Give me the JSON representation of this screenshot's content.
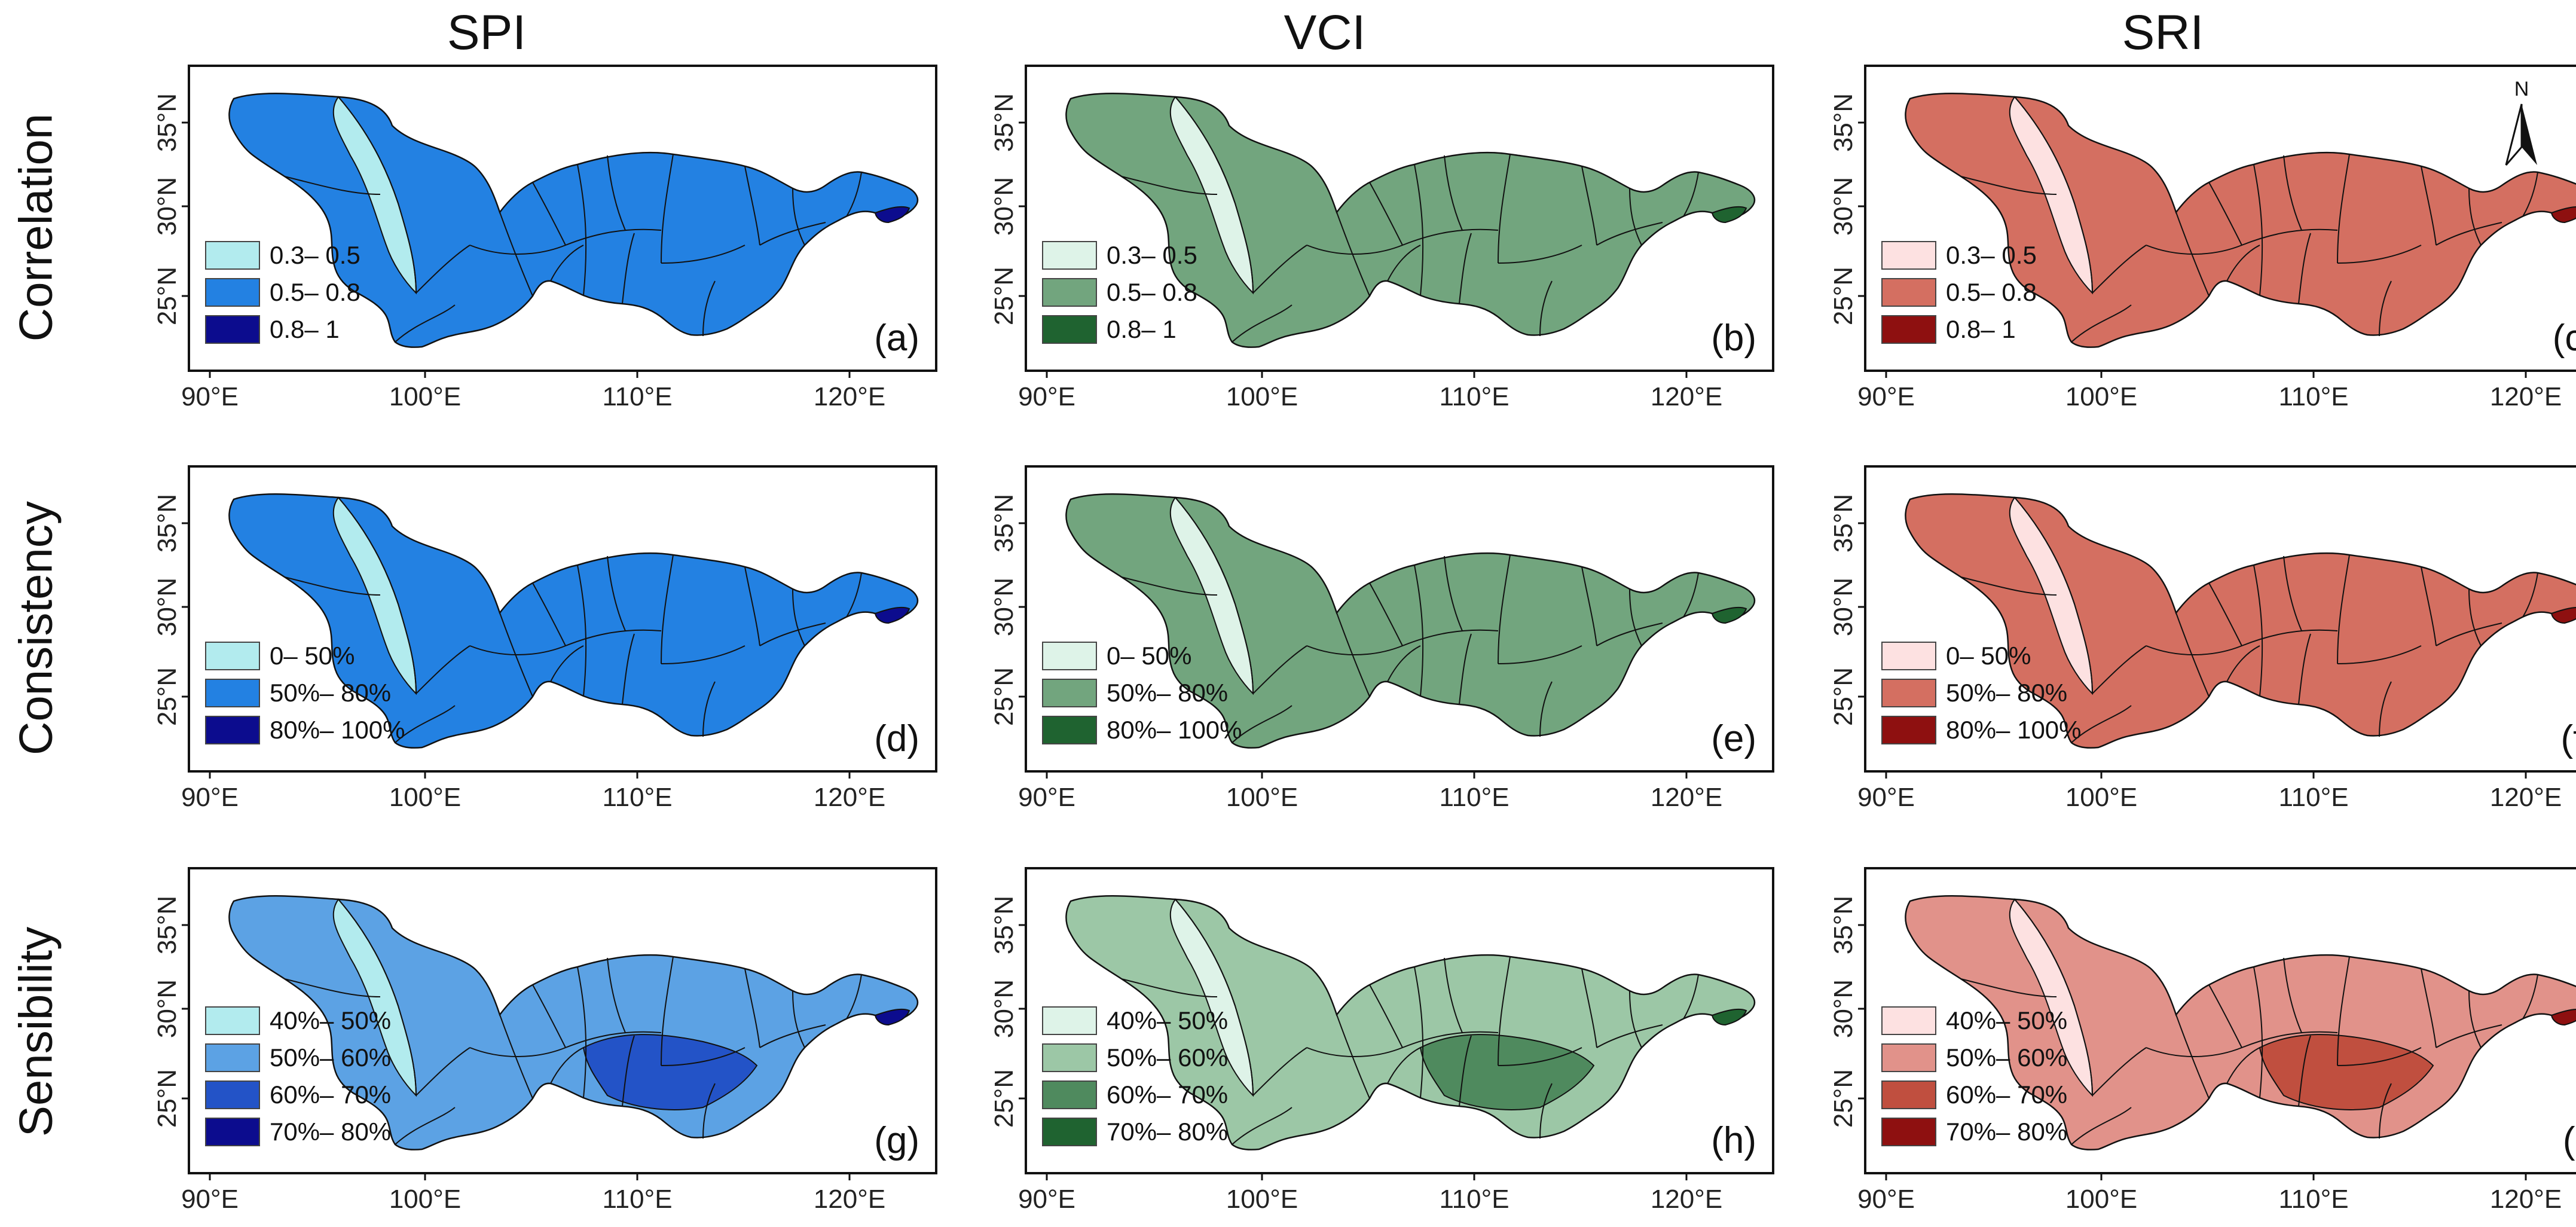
{
  "columns": [
    {
      "title": "SPI"
    },
    {
      "title": "VCI"
    },
    {
      "title": "SRI"
    }
  ],
  "rows": [
    {
      "title": "Correlation"
    },
    {
      "title": "Consistency"
    },
    {
      "title": "Sensibility"
    }
  ],
  "axes": {
    "lon_ticks": [
      "90°E",
      "100°E",
      "110°E",
      "120°E"
    ],
    "lat_ticks": [
      "35°N",
      "30°N",
      "25°N"
    ]
  },
  "north_arrow": {
    "label": "N"
  },
  "panels": [
    {
      "letter": "(a)",
      "legend": [
        {
          "label": "0.3– 0.5",
          "color": "#b2ebee"
        },
        {
          "label": "0.5– 0.8",
          "color": "#2381e2"
        },
        {
          "label": "0.8– 1",
          "color": "#0c0c8e"
        }
      ]
    },
    {
      "letter": "(b)",
      "legend": [
        {
          "label": "0.3– 0.5",
          "color": "#def3e8"
        },
        {
          "label": "0.5– 0.8",
          "color": "#72a57e"
        },
        {
          "label": "0.8– 1",
          "color": "#1f6330"
        }
      ]
    },
    {
      "letter": "(c)",
      "legend": [
        {
          "label": "0.3– 0.5",
          "color": "#fde1e1"
        },
        {
          "label": "0.5– 0.8",
          "color": "#d46f61"
        },
        {
          "label": "0.8– 1",
          "color": "#8e1010"
        }
      ]
    },
    {
      "letter": "(d)",
      "legend": [
        {
          "label": "0– 50%",
          "color": "#b2ebee"
        },
        {
          "label": "50%– 80%",
          "color": "#2381e2"
        },
        {
          "label": "80%– 100%",
          "color": "#0c0c8e"
        }
      ]
    },
    {
      "letter": "(e)",
      "legend": [
        {
          "label": "0– 50%",
          "color": "#def3e8"
        },
        {
          "label": "50%– 80%",
          "color": "#72a57e"
        },
        {
          "label": "80%– 100%",
          "color": "#1f6330"
        }
      ]
    },
    {
      "letter": "(f)",
      "legend": [
        {
          "label": "0– 50%",
          "color": "#fde1e1"
        },
        {
          "label": "50%– 80%",
          "color": "#d46f61"
        },
        {
          "label": "80%– 100%",
          "color": "#8e1010"
        }
      ]
    },
    {
      "letter": "(g)",
      "legend": [
        {
          "label": "40%– 50%",
          "color": "#b2ebee"
        },
        {
          "label": "50%– 60%",
          "color": "#5ca2e4"
        },
        {
          "label": "60%– 70%",
          "color": "#2353c7"
        },
        {
          "label": "70%– 80%",
          "color": "#0c0c8e"
        }
      ]
    },
    {
      "letter": "(h)",
      "legend": [
        {
          "label": "40%– 50%",
          "color": "#def3e8"
        },
        {
          "label": "50%– 60%",
          "color": "#9cc7a6"
        },
        {
          "label": "60%– 70%",
          "color": "#4f8a5e"
        },
        {
          "label": "70%– 80%",
          "color": "#1f6330"
        }
      ]
    },
    {
      "letter": "(i)",
      "legend": [
        {
          "label": "40%– 50%",
          "color": "#fde1e1"
        },
        {
          "label": "50%– 60%",
          "color": "#e1928a"
        },
        {
          "label": "60%– 70%",
          "color": "#c04f3f"
        },
        {
          "label": "70%– 80%",
          "color": "#8e1010"
        }
      ]
    }
  ]
}
